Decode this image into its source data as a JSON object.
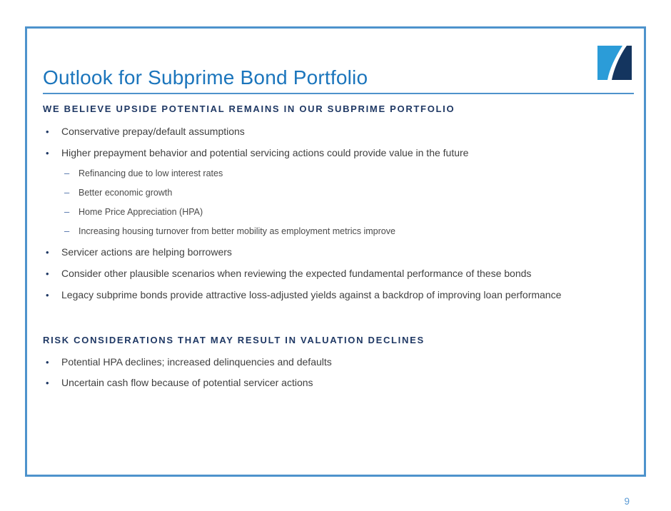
{
  "slide": {
    "title": "Outlook for Subprime Bond Portfolio",
    "page_number": "9",
    "logo_icon": "two-tone-swoosh-logo",
    "colors": {
      "title_blue": "#1B75BC",
      "frame_border_blue": "#4E93CC",
      "heading_navy": "#1F3864",
      "body_text_gray": "#3F3F3F",
      "page_number_blue": "#5B9BD5",
      "logo_light_blue": "#2B9CD8",
      "logo_dark_navy": "#14355F"
    },
    "sections": [
      {
        "heading": "WE BELIEVE UPSIDE POTENTIAL REMAINS IN OUR SUBPRIME PORTFOLIO",
        "bullets": [
          {
            "text": "Conservative prepay/default assumptions",
            "sub_bullets": []
          },
          {
            "text": "Higher prepayment behavior and potential servicing actions could provide value in the future",
            "sub_bullets": [
              "Refinancing due to low interest rates",
              "Better economic growth",
              "Home Price Appreciation (HPA)",
              "Increasing housing turnover from better mobility as employment metrics improve"
            ]
          },
          {
            "text": "Servicer actions are helping borrowers",
            "sub_bullets": []
          },
          {
            "text": "Consider other plausible scenarios when reviewing the expected fundamental performance of these bonds",
            "sub_bullets": []
          },
          {
            "text": "Legacy subprime bonds provide attractive loss-adjusted yields against a backdrop of improving loan performance",
            "sub_bullets": []
          }
        ]
      },
      {
        "heading": "RISK CONSIDERATIONS THAT MAY RESULT IN VALUATION DECLINES",
        "bullets": [
          {
            "text": "Potential HPA declines; increased delinquencies and defaults",
            "sub_bullets": []
          },
          {
            "text": "Uncertain cash flow because of potential servicer actions",
            "sub_bullets": []
          }
        ]
      }
    ]
  }
}
